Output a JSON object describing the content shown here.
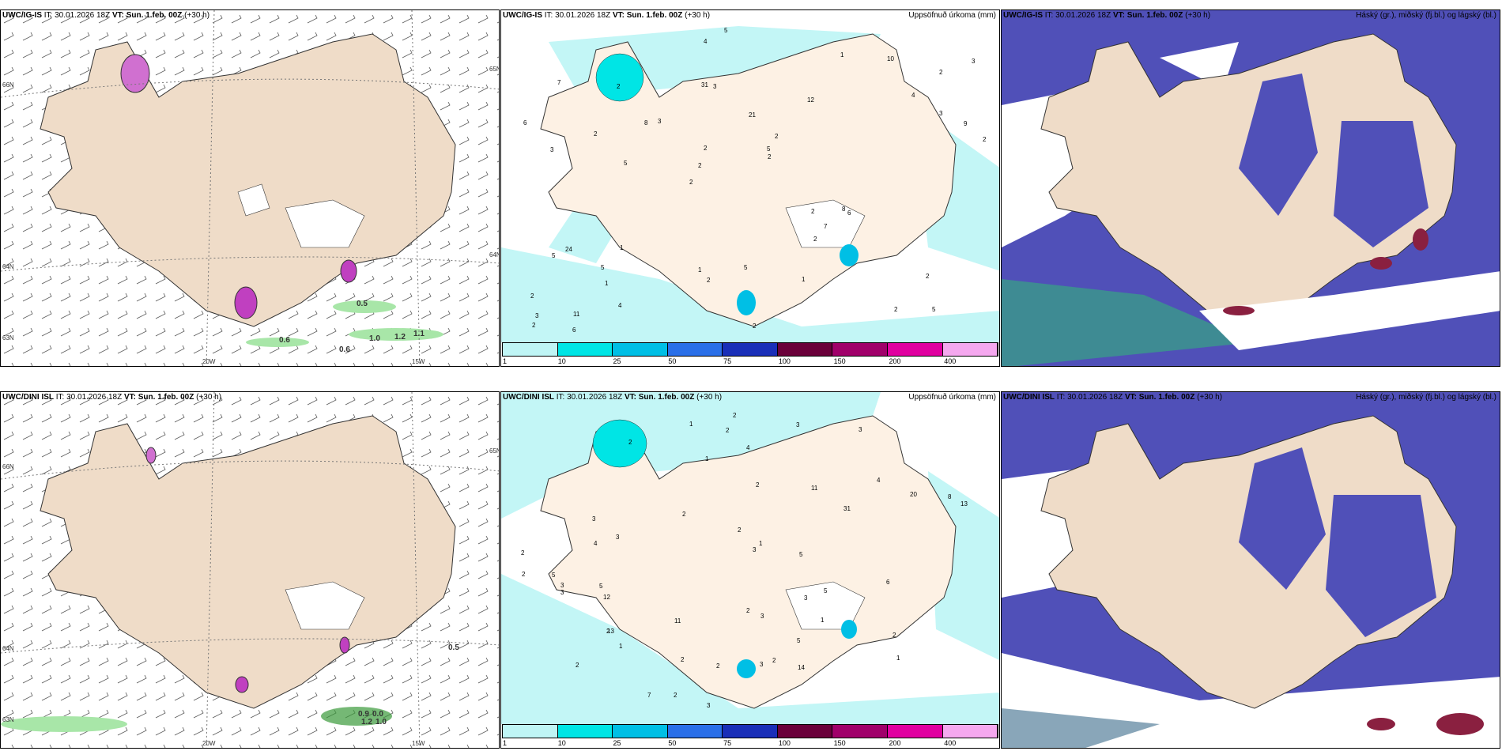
{
  "rows": [
    {
      "model": "UWC/IG-IS",
      "wind_header": {
        "model": "UWC/IG-IS",
        "it": "IT: 30.01.2026 18Z",
        "vt": "VT: Sun. 1.feb. 00Z",
        "lead": "(+30 h)"
      },
      "wind_labels": [
        "0.5",
        "0.6",
        "0.6",
        "1.0",
        "1.2",
        "1.1"
      ],
      "lon_labels": [
        "20W",
        "15W"
      ],
      "lat_labels": [
        "66N",
        "64N",
        "63N",
        "65N",
        "64N"
      ],
      "precip_header": {
        "model": "UWC/IG-IS",
        "it": "IT: 30.01.2026 18Z",
        "vt": "VT: Sun. 1.feb. 00Z",
        "lead": "(+30 h)",
        "right": "Uppsöfnuð úrkoma (mm)"
      },
      "precip_numbers": [
        "5",
        "3",
        "2",
        "2",
        "12",
        "11",
        "31",
        "21",
        "24",
        "3",
        "2",
        "1",
        "3",
        "2",
        "6",
        "7",
        "4",
        "2",
        "2",
        "3",
        "2",
        "1",
        "2",
        "2",
        "1",
        "1",
        "2",
        "2",
        "8",
        "2",
        "8",
        "2",
        "2",
        "4",
        "9",
        "5",
        "3",
        "2",
        "2",
        "5",
        "4",
        "3",
        "7",
        "1",
        "5",
        "6",
        "2",
        "5",
        "10",
        "5",
        "5",
        "6"
      ],
      "cloud_header": {
        "model": "UWC/IG-IS",
        "it": "IT: 30.01.2026 18Z",
        "vt": "VT: Sun. 1.feb. 00Z",
        "lead": "(+30 h)",
        "right": "Háský (gr.), miðský (fj.bl.) og lágský (bl.)"
      }
    },
    {
      "model": "UWC/DINI ISL",
      "wind_header": {
        "model": "UWC/DINI ISL",
        "it": "IT: 30.01.2026 18Z",
        "vt": "VT: Sun. 1.feb. 00Z",
        "lead": "(+30 h)"
      },
      "wind_labels": [
        "0.5",
        "0.9",
        "0.0",
        "1.2",
        "1.0"
      ],
      "lon_labels": [
        "20W",
        "15W"
      ],
      "lat_labels": [
        "66N",
        "64N",
        "63N",
        "65N"
      ],
      "precip_header": {
        "model": "UWC/DINI ISL",
        "it": "IT: 30.01.2026 18Z",
        "vt": "VT: Sun. 1.feb. 00Z",
        "lead": "(+30 h)",
        "right": "Uppsöfnuð úrkoma (mm)"
      },
      "precip_numbers": [
        "2",
        "3",
        "2",
        "4",
        "3",
        "3",
        "12",
        "13",
        "20",
        "31",
        "5",
        "2",
        "1",
        "3",
        "3",
        "1",
        "1",
        "2",
        "2",
        "2",
        "14",
        "2",
        "1",
        "1",
        "2",
        "2",
        "3",
        "3",
        "2",
        "5",
        "3",
        "1",
        "2",
        "2",
        "2",
        "3",
        "8",
        "5",
        "11",
        "6",
        "13",
        "4",
        "2",
        "5",
        "2",
        "4",
        "3",
        "3",
        "11",
        "5",
        "2",
        "7"
      ],
      "cloud_header": {
        "model": "UWC/DINI ISL",
        "it": "IT: 30.01.2026 18Z",
        "vt": "VT: Sun. 1.feb. 00Z",
        "lead": "(+30 h)",
        "right": "Háský (gr.), miðský (fj.bl.) og lágský (bl.)"
      }
    }
  ],
  "legend": {
    "ticks": [
      "1",
      "10",
      "25",
      "50",
      "75",
      "100",
      "150",
      "200",
      "400"
    ],
    "colors": [
      "#bff5f5",
      "#00e5e5",
      "#00bfe5",
      "#2a6fe8",
      "#1a2fb8",
      "#6a003a",
      "#a0006a",
      "#e000a0",
      "#f5a8ef"
    ]
  },
  "colors": {
    "land": "#efdcc8",
    "land_light": "#fdf1e4",
    "precip_light": "#c3f6f6",
    "cloud_blue": "#5050b8",
    "green": "#a8e6a8"
  }
}
